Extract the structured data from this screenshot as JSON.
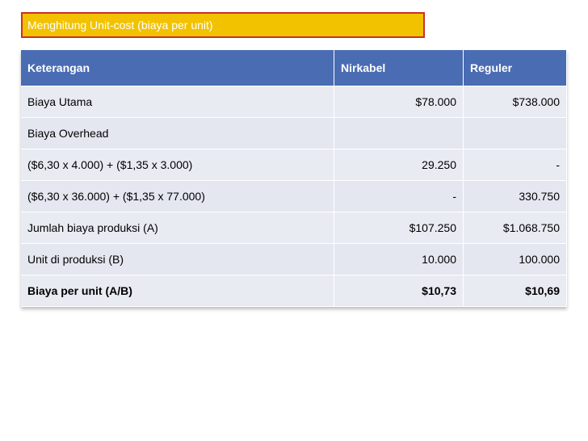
{
  "header": {
    "title": "Menghitung Unit-cost (biaya per unit)"
  },
  "table": {
    "columns": [
      "Keterangan",
      "Nirkabel",
      "Reguler"
    ],
    "rows": [
      [
        "Biaya Utama",
        "$78.000",
        "$738.000"
      ],
      [
        "Biaya Overhead"
      ],
      [
        "($6,30 x 4.000) + ($1,35 x 3.000)",
        "29.250",
        "-"
      ],
      [
        "($6,30 x 36.000) + ($1,35 x 77.000)",
        "-",
        "330.750"
      ],
      [
        "Jumlah biaya produksi (A)",
        "$107.250",
        "$1.068.750"
      ],
      [
        "Unit di produksi (B)",
        "10.000",
        "100.000"
      ],
      [
        "Biaya per unit (A/B)",
        "$10,73",
        "$10,69"
      ]
    ],
    "bold_rows": [
      6
    ]
  }
}
